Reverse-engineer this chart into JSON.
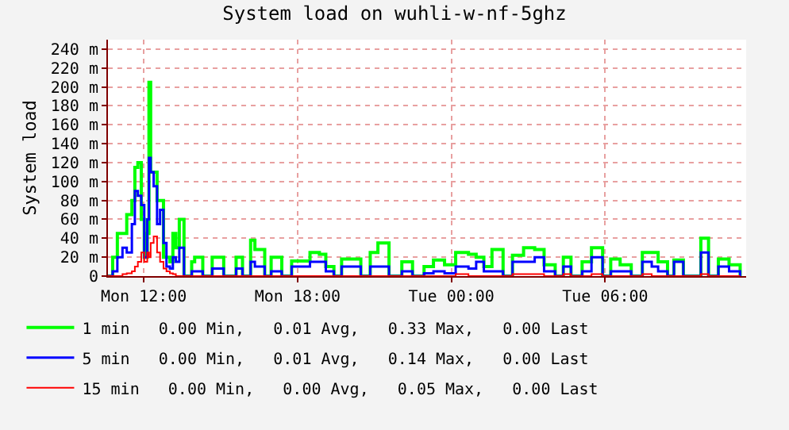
{
  "chart_data": {
    "type": "step",
    "title": "System load on wuhli-w-nf-5ghz",
    "ylabel": "System load",
    "x": [
      "--01-01T10:36",
      "--01-01T10:47",
      "--01-01T10:58",
      "--01-01T11:10",
      "--01-01T11:20",
      "--01-01T11:32",
      "--01-01T11:39",
      "--01-01T11:46",
      "--01-01T11:54",
      "--01-01T12:01",
      "--01-01T12:08",
      "--01-01T12:12",
      "--01-01T12:16",
      "--01-01T12:23",
      "--01-01T12:31",
      "--01-01T12:38",
      "--01-01T12:46",
      "--01-01T12:53",
      "--01-01T13:01",
      "--01-01T13:08",
      "--01-01T13:15",
      "--01-01T13:23",
      "--01-01T13:34",
      "--01-01T13:52",
      "--01-01T13:59",
      "--01-01T14:18",
      "--01-01T14:40",
      "--01-01T15:07",
      "--01-01T15:36",
      "--01-01T15:51",
      "--01-01T16:10",
      "--01-01T16:20",
      "--01-01T16:43",
      "--01-01T16:58",
      "--01-01T17:23",
      "--01-01T17:46",
      "--01-01T18:29",
      "--01-01T18:51",
      "--01-01T19:06",
      "--01-01T19:25",
      "--01-01T19:43",
      "--01-01T20:02",
      "--01-01T20:28",
      "--01-01T20:50",
      "--01-01T21:08",
      "--01-01T21:34",
      "--01-01T22:04",
      "--01-01T22:29",
      "--01-01T22:56",
      "--01-01T23:18",
      "--01-01T23:44",
      "--01-02T00:10",
      "--01-02T00:40",
      "--01-02T00:58",
      "--01-02T01:16",
      "--01-02T01:35",
      "--01-02T02:01",
      "--01-02T02:23",
      "--01-02T02:49",
      "--01-02T03:15",
      "--01-02T03:37",
      "--01-02T04:03",
      "--01-02T04:22",
      "--01-02T04:40",
      "--01-02T05:06",
      "--01-02T05:28",
      "--01-02T05:54",
      "--01-02T06:13",
      "--01-02T06:35",
      "--01-02T07:01",
      "--01-02T07:27",
      "--01-02T07:49",
      "--01-02T08:04",
      "--01-02T08:26",
      "--01-02T08:41",
      "--01-02T09:03",
      "--01-02T09:25",
      "--01-02T09:44",
      "--01-02T10:02",
      "--01-02T10:25",
      "--01-02T10:50",
      "--01-02T11:16"
    ],
    "series": [
      {
        "name": "1 min   0.00 Min,   0.01 Avg,   0.33 Max,   0.00 Last",
        "color": "#00ff00",
        "values": [
          0,
          20,
          45,
          45,
          65,
          80,
          115,
          120,
          60,
          20,
          45,
          205,
          110,
          110,
          80,
          80,
          20,
          20,
          15,
          45,
          30,
          60,
          0,
          15,
          20,
          0,
          20,
          0,
          20,
          0,
          38,
          28,
          0,
          20,
          0,
          16,
          25,
          23,
          10,
          0,
          18,
          18,
          0,
          25,
          35,
          0,
          15,
          0,
          10,
          17,
          12,
          25,
          23,
          20,
          10,
          28,
          0,
          22,
          30,
          28,
          12,
          0,
          20,
          0,
          15,
          30,
          0,
          18,
          12,
          0,
          25,
          25,
          15,
          0,
          17,
          0,
          0,
          40,
          0,
          18,
          12,
          0
        ]
      },
      {
        "name": "5 min   0.00 Min,   0.01 Avg,   0.14 Max,   0.00 Last",
        "color": "#0000ff",
        "values": [
          0,
          5,
          20,
          30,
          25,
          55,
          90,
          85,
          75,
          20,
          60,
          125,
          110,
          95,
          55,
          70,
          35,
          10,
          8,
          20,
          15,
          30,
          0,
          5,
          5,
          0,
          8,
          0,
          8,
          0,
          15,
          10,
          0,
          5,
          0,
          10,
          15,
          15,
          5,
          0,
          10,
          10,
          0,
          10,
          10,
          0,
          5,
          0,
          3,
          5,
          3,
          10,
          8,
          15,
          5,
          5,
          0,
          15,
          15,
          20,
          5,
          0,
          10,
          0,
          5,
          20,
          0,
          5,
          5,
          0,
          15,
          10,
          5,
          0,
          15,
          0,
          0,
          25,
          0,
          10,
          5,
          0
        ]
      },
      {
        "name": "15 min   0.00 Min,   0.00 Avg,   0.05 Max,   0.00 Last",
        "color": "#ff0000",
        "values": [
          0,
          0,
          0,
          2,
          3,
          5,
          10,
          15,
          25,
          15,
          25,
          20,
          35,
          42,
          25,
          15,
          8,
          5,
          3,
          2,
          0,
          0,
          0,
          0,
          0,
          0,
          0,
          0,
          0,
          0,
          0,
          0,
          0,
          0,
          0,
          0,
          0,
          0,
          0,
          0,
          0,
          0,
          0,
          0,
          0,
          0,
          0,
          0,
          0,
          0,
          0,
          2,
          0,
          0,
          0,
          0,
          0,
          2,
          2,
          2,
          0,
          0,
          2,
          0,
          0,
          2,
          0,
          0,
          0,
          0,
          2,
          0,
          0,
          0,
          0,
          0,
          0,
          2,
          0,
          0,
          0,
          0
        ]
      }
    ],
    "xlim": [
      "--01-01T10:36",
      "--01-02T11:30"
    ],
    "xticks": [
      {
        "value": "--01-01T12:00",
        "label": "Mon 12:00"
      },
      {
        "value": "--01-01T18:00",
        "label": "Mon 18:00"
      },
      {
        "value": "--01-02T00:00",
        "label": "Tue 00:00"
      },
      {
        "value": "--01-02T06:00",
        "label": "Tue 06:00"
      }
    ],
    "ylim": [
      0,
      250
    ],
    "yticks": [
      0,
      {
        "value": 20,
        "label": "20 m"
      },
      {
        "value": 40,
        "label": "40 m"
      },
      {
        "value": 60,
        "label": "60 m"
      },
      {
        "value": 80,
        "label": "80 m"
      },
      {
        "value": 100,
        "label": "100 m"
      },
      {
        "value": 120,
        "label": "120 m"
      },
      {
        "value": 140,
        "label": "140 m"
      },
      {
        "value": 160,
        "label": "160 m"
      },
      {
        "value": 180,
        "label": "180 m"
      },
      {
        "value": 200,
        "label": "200 m"
      },
      {
        "value": 220,
        "label": "220 m"
      },
      {
        "value": 240,
        "label": "240 m"
      }
    ],
    "grid": true,
    "legend": "bottom",
    "marker": "none",
    "line_style": "solid"
  }
}
